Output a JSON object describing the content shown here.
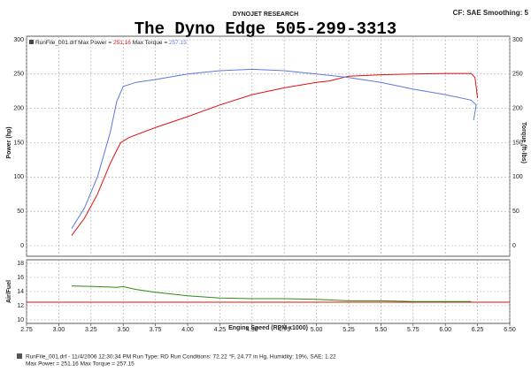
{
  "header": {
    "brand": "DYNOJET RESEARCH",
    "title": "The Dyno Edge 505-299-3313",
    "settings": "CF: SAE  Smoothing: 5"
  },
  "chart_data": [
    {
      "type": "line",
      "legend_file": "RunFile_001.drf",
      "ylabel": "Power (hp)",
      "y2label": "Torque (ft-lbs)",
      "xlim": [
        2.75,
        6.5
      ],
      "xticks": [
        2.75,
        3,
        3.25,
        3.5,
        3.75,
        4,
        4.25,
        4.5,
        4.75,
        5,
        5.25,
        5.5,
        5.75,
        6,
        6.25,
        6.5
      ],
      "ylim": [
        0,
        300
      ],
      "yticks": [
        0,
        50,
        100,
        150,
        200,
        250,
        300
      ],
      "y2lim": [
        0,
        300
      ],
      "y2ticks": [
        0,
        50,
        100,
        150,
        200,
        250,
        300
      ],
      "grid": true,
      "series": [
        {
          "name": "Max Power =",
          "peak": 251.16,
          "color": "#e01010",
          "x": [
            3.1,
            3.2,
            3.3,
            3.4,
            3.48,
            3.55,
            3.75,
            4.0,
            4.25,
            4.5,
            4.75,
            5.0,
            5.1,
            5.25,
            5.5,
            5.75,
            6.0,
            6.2,
            6.23,
            6.25
          ],
          "values": [
            15,
            40,
            75,
            120,
            150,
            158,
            172,
            188,
            205,
            220,
            230,
            238,
            240,
            247,
            249,
            250,
            251,
            251,
            245,
            215
          ]
        },
        {
          "name": "Max Torque =",
          "peak": 257.15,
          "color": "#5a78e0",
          "axis": "y2",
          "x": [
            3.1,
            3.2,
            3.3,
            3.4,
            3.45,
            3.5,
            3.6,
            3.75,
            4.0,
            4.25,
            4.5,
            4.75,
            5.0,
            5.25,
            5.5,
            5.75,
            6.0,
            6.2,
            6.24,
            6.22
          ],
          "values": [
            25,
            55,
            100,
            165,
            210,
            232,
            238,
            242,
            250,
            255,
            257,
            255,
            250,
            245,
            238,
            228,
            220,
            212,
            205,
            183
          ]
        }
      ]
    },
    {
      "type": "line",
      "ylabel": "Air/Fuel",
      "xlabel": "Engine Speed (RPM x1000)",
      "xlim": [
        2.75,
        6.5
      ],
      "xticks": [
        {
          "value": 2.75,
          "label": "2.75"
        },
        {
          "value": 3,
          "label": "3.00"
        },
        {
          "value": 3.25,
          "label": "3.25"
        },
        {
          "value": 3.5,
          "label": "3.50"
        },
        {
          "value": 3.75,
          "label": "3.75"
        },
        {
          "value": 4,
          "label": "4.00"
        },
        {
          "value": 4.25,
          "label": "4.25"
        },
        {
          "value": 4.5,
          "label": "4.50"
        },
        {
          "value": 4.75,
          "label": "4.75"
        },
        {
          "value": 5,
          "label": "5.00"
        },
        {
          "value": 5.25,
          "label": "5.25"
        },
        {
          "value": 5.5,
          "label": "5.50"
        },
        {
          "value": 5.75,
          "label": "5.75"
        },
        {
          "value": 6,
          "label": "6.00"
        },
        {
          "value": 6.25,
          "label": "6.25"
        },
        {
          "value": 6.5,
          "label": "6.50"
        }
      ],
      "ylim": [
        10,
        18
      ],
      "yticks": [
        10,
        12,
        14,
        16,
        18
      ],
      "grid": true,
      "reference_line": 12.5,
      "reference_color": "#e01010",
      "series": [
        {
          "color": "#2e8b10",
          "x": [
            3.1,
            3.3,
            3.45,
            3.5,
            3.6,
            3.75,
            4.0,
            4.25,
            4.5,
            4.75,
            5.0,
            5.25,
            5.5,
            5.75,
            6.0,
            6.2
          ],
          "values": [
            14.8,
            14.7,
            14.6,
            14.7,
            14.3,
            13.9,
            13.4,
            13.1,
            13.0,
            13.0,
            12.9,
            12.7,
            12.7,
            12.6,
            12.6,
            12.6
          ]
        }
      ]
    }
  ],
  "footer": [
    "RunFile_001.drf - 11/4/2006 12:30:34 PM  Run Type: RD  Run Conditions: 72.22 °F, 24.77 in Hg, Humidity: 19%, SAE: 1.22",
    "Max Power = 251.16  Max Torque = 257.15"
  ]
}
